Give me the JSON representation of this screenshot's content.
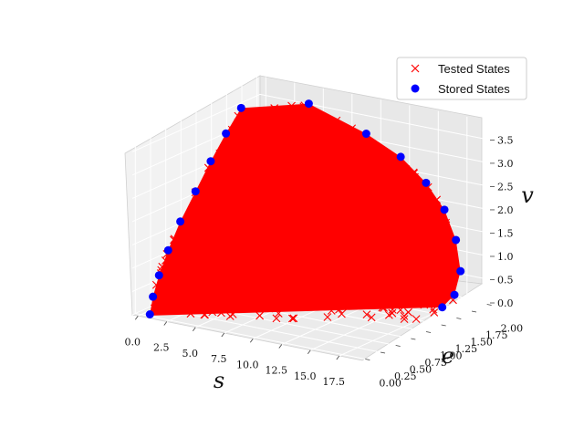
{
  "chart_data": {
    "type": "scatter",
    "projection": "3d",
    "title": "",
    "xlabel": "s",
    "ylabel": "e",
    "zlabel": "v",
    "xlim": [
      -0.5,
      19.5
    ],
    "ylim": [
      -0.05,
      2.05
    ],
    "zlim": [
      0,
      3.9
    ],
    "x_ticks": [
      "0.0",
      "2.5",
      "5.0",
      "7.5",
      "10.0",
      "12.5",
      "15.0",
      "17.5"
    ],
    "y_ticks": [
      "0.00",
      "0.25",
      "0.50",
      "0.75",
      "1.00",
      "1.25",
      "1.50",
      "1.75",
      "2.00"
    ],
    "z_ticks": [
      "0.0",
      "0.5",
      "1.0",
      "1.5",
      "2.0",
      "2.5",
      "3.0",
      "3.5"
    ],
    "grid": true,
    "legend_position": "top-right",
    "series": [
      {
        "name": "Tested States",
        "marker": "x",
        "color": "#ff0000",
        "description": "dense cloud filling the region bounded by the stored states"
      },
      {
        "name": "Stored States",
        "marker": "o",
        "color": "#0000ff",
        "points": [
          {
            "s": 0.5,
            "e": 0.05,
            "v": 0.0
          },
          {
            "s": 0.5,
            "e": 0.1,
            "v": 0.35
          },
          {
            "s": 0.5,
            "e": 0.2,
            "v": 0.75
          },
          {
            "s": 0.5,
            "e": 0.35,
            "v": 1.2
          },
          {
            "s": 0.5,
            "e": 0.55,
            "v": 1.7
          },
          {
            "s": 0.5,
            "e": 0.8,
            "v": 2.2
          },
          {
            "s": 0.5,
            "e": 1.05,
            "v": 2.7
          },
          {
            "s": 0.5,
            "e": 1.3,
            "v": 3.15
          },
          {
            "s": 0.5,
            "e": 1.55,
            "v": 3.55
          },
          {
            "s": 4.0,
            "e": 2.0,
            "v": 3.55
          },
          {
            "s": 9.0,
            "e": 2.0,
            "v": 3.15
          },
          {
            "s": 12.0,
            "e": 2.0,
            "v": 2.8
          },
          {
            "s": 14.2,
            "e": 2.0,
            "v": 2.35
          },
          {
            "s": 15.8,
            "e": 2.0,
            "v": 1.85
          },
          {
            "s": 16.8,
            "e": 2.0,
            "v": 1.25
          },
          {
            "s": 17.2,
            "e": 2.0,
            "v": 0.6
          },
          {
            "s": 17.2,
            "e": 1.9,
            "v": 0.15
          },
          {
            "s": 17.2,
            "e": 1.7,
            "v": 0.0
          }
        ]
      }
    ]
  }
}
